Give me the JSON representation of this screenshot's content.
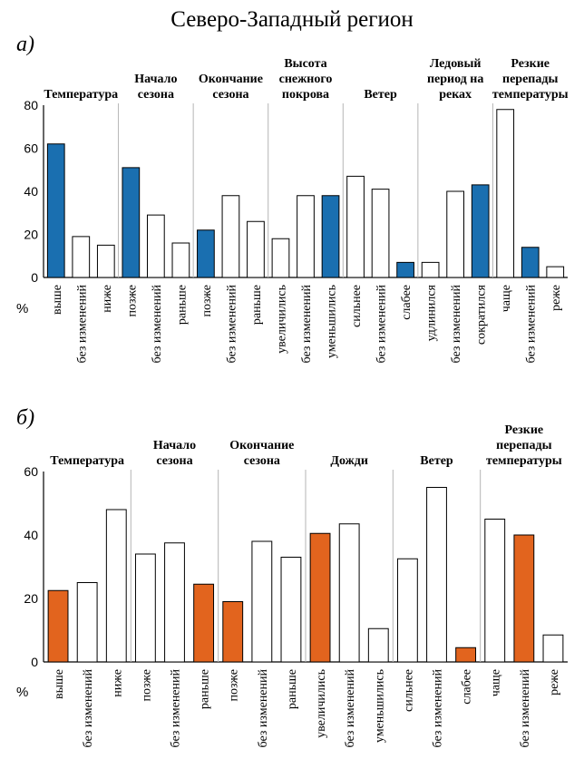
{
  "title": "Северо-Западный регион",
  "colors": {
    "a_fill": "#1a6fb0",
    "b_fill": "#e2641e",
    "outline": "#000000",
    "separator": "#b5b5b5"
  },
  "chart_data": [
    {
      "type": "bar",
      "panel": "а)",
      "ylim": [
        0,
        80
      ],
      "yticks": [
        "0",
        "20",
        "40",
        "60",
        "80"
      ],
      "y_unit": "%",
      "groups": [
        {
          "label": [
            "Температура"
          ],
          "categories": [
            "выше",
            "без изменений",
            "ниже"
          ],
          "values": [
            62,
            19,
            15
          ],
          "highlight": [
            true,
            false,
            false
          ]
        },
        {
          "label": [
            "Начало",
            "сезона"
          ],
          "categories": [
            "позже",
            "без изменений",
            "раньше"
          ],
          "values": [
            51,
            29,
            16
          ],
          "highlight": [
            true,
            false,
            false
          ]
        },
        {
          "label": [
            "Окончание",
            "сезона"
          ],
          "categories": [
            "позже",
            "без изменений",
            "раньше"
          ],
          "values": [
            22,
            38,
            26
          ],
          "highlight": [
            true,
            false,
            false
          ]
        },
        {
          "label": [
            "Высота",
            "снежного",
            "покрова"
          ],
          "categories": [
            "увеличились",
            "без изменений",
            "уменьшились"
          ],
          "values": [
            18,
            38,
            38
          ],
          "highlight": [
            false,
            false,
            true
          ]
        },
        {
          "label": [
            "Ветер"
          ],
          "categories": [
            "сильнее",
            "без изменений",
            "слабее"
          ],
          "values": [
            47,
            41,
            7
          ],
          "highlight": [
            false,
            false,
            true
          ]
        },
        {
          "label": [
            "Ледовый",
            "период на",
            "реках"
          ],
          "categories": [
            "удлинился",
            "без изменений",
            "сократился"
          ],
          "values": [
            7,
            40,
            43
          ],
          "highlight": [
            false,
            false,
            true
          ]
        },
        {
          "label": [
            "Резкие",
            "перепады",
            "температуры"
          ],
          "categories": [
            "чаще",
            "без изменений",
            "реже"
          ],
          "values": [
            78,
            14,
            5
          ],
          "highlight": [
            false,
            true,
            false
          ]
        }
      ]
    },
    {
      "type": "bar",
      "panel": "б)",
      "ylim": [
        0,
        60
      ],
      "yticks": [
        "0",
        "20",
        "40",
        "60"
      ],
      "y_unit": "%",
      "groups": [
        {
          "label": [
            "Температура"
          ],
          "categories": [
            "выше",
            "без изменений",
            "ниже"
          ],
          "values": [
            22.5,
            25,
            48
          ],
          "highlight": [
            true,
            false,
            false
          ]
        },
        {
          "label": [
            "Начало",
            "сезона"
          ],
          "categories": [
            "позже",
            "без изменений",
            "раньше"
          ],
          "values": [
            34,
            37.5,
            24.5
          ],
          "highlight": [
            false,
            false,
            true
          ]
        },
        {
          "label": [
            "Окончание",
            "сезона"
          ],
          "categories": [
            "позже",
            "без изменений",
            "раньше"
          ],
          "values": [
            19,
            38,
            33
          ],
          "highlight": [
            true,
            false,
            false
          ]
        },
        {
          "label": [
            "Дожди"
          ],
          "categories": [
            "увеличились",
            "без изменений",
            "уменьшились"
          ],
          "values": [
            40.5,
            43.5,
            10.5
          ],
          "highlight": [
            true,
            false,
            false
          ]
        },
        {
          "label": [
            "Ветер"
          ],
          "categories": [
            "сильнее",
            "без изменений",
            "слабее"
          ],
          "values": [
            32.5,
            55,
            4.5
          ],
          "highlight": [
            false,
            false,
            true
          ]
        },
        {
          "label": [
            "Резкие",
            "перепады",
            "температуры"
          ],
          "categories": [
            "чаще",
            "без изменений",
            "реже"
          ],
          "values": [
            45,
            40,
            8.5
          ],
          "highlight": [
            false,
            true,
            false
          ]
        }
      ]
    }
  ]
}
